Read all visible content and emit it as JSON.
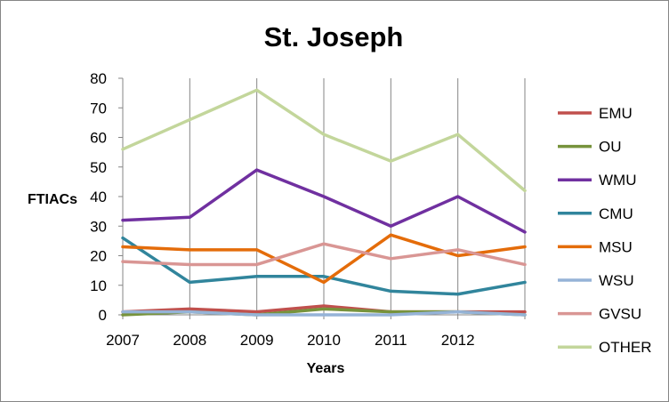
{
  "chart_data": {
    "type": "line",
    "title": "St. Joseph",
    "xlabel": "Years",
    "ylabel": "FTIACs",
    "ylim": [
      0,
      80
    ],
    "yticks": [
      0,
      10,
      20,
      30,
      40,
      50,
      60,
      70,
      80
    ],
    "x_tick_labels": [
      "2007",
      "2008",
      "2009",
      "2010",
      "2011",
      "2012"
    ],
    "x_points": 7,
    "grid": "vertical",
    "legend": "right",
    "series": [
      {
        "name": "EMU",
        "color": "#C0504D",
        "values": [
          1,
          2,
          1,
          3,
          1,
          1,
          1
        ]
      },
      {
        "name": "OU",
        "color": "#77933C",
        "values": [
          0,
          1,
          0,
          2,
          1,
          1,
          0
        ]
      },
      {
        "name": "WMU",
        "color": "#7030A0",
        "values": [
          32,
          33,
          49,
          40,
          30,
          40,
          28
        ]
      },
      {
        "name": "CMU",
        "color": "#31859C",
        "values": [
          26,
          11,
          13,
          13,
          8,
          7,
          11
        ]
      },
      {
        "name": "MSU",
        "color": "#E46C0A",
        "values": [
          23,
          22,
          22,
          11,
          27,
          20,
          23
        ]
      },
      {
        "name": "WSU",
        "color": "#95B3D7",
        "values": [
          1,
          1,
          0,
          0,
          0,
          1,
          0
        ]
      },
      {
        "name": "GVSU",
        "color": "#D99694",
        "values": [
          18,
          17,
          17,
          24,
          19,
          22,
          17
        ]
      },
      {
        "name": "OTHER",
        "color": "#C3D69B",
        "values": [
          56,
          66,
          76,
          61,
          52,
          61,
          42
        ]
      }
    ]
  }
}
